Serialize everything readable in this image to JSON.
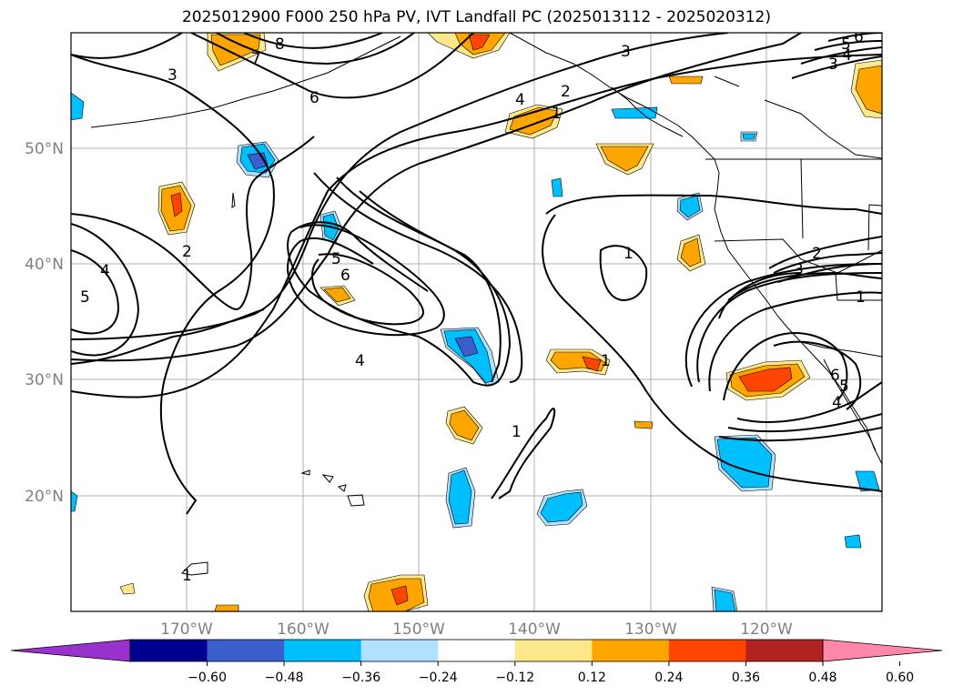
{
  "title": "2025012900 F000 250 hPa PV, IVT Landfall PC (2025013112 - 2025020312)",
  "lon_labels": [
    "170°W",
    "160°W",
    "150°W",
    "140°W",
    "130°W",
    "120°W"
  ],
  "lat_labels": [
    "50°N",
    "40°N",
    "30°N",
    "20°N"
  ],
  "contour_labels": [
    "3",
    "8",
    "7",
    "6",
    "4",
    "2",
    "1",
    "3",
    "5",
    "6",
    "3",
    "4",
    "2",
    "5",
    "6",
    "4",
    "1",
    "1",
    "1",
    "1",
    "2",
    "3",
    "4",
    "5",
    "4",
    "5",
    "6",
    "1"
  ],
  "colorbar": {
    "ticks": [
      "−0.60",
      "−0.48",
      "−0.36",
      "−0.24",
      "−0.12",
      "0.12",
      "0.24",
      "0.36",
      "0.48",
      "0.60"
    ],
    "under_color": "#9932cc",
    "over_color": "#ff88aa",
    "colors": [
      "#000090",
      "#3a5fcd",
      "#00bfff",
      "#b0e2ff",
      "#ffffff",
      "#ffe88a",
      "#ffa500",
      "#ff4500",
      "#b22222"
    ]
  },
  "colors": {
    "grid": "#b0b0b0",
    "axis_label": "#808080",
    "contour": "#000000"
  }
}
